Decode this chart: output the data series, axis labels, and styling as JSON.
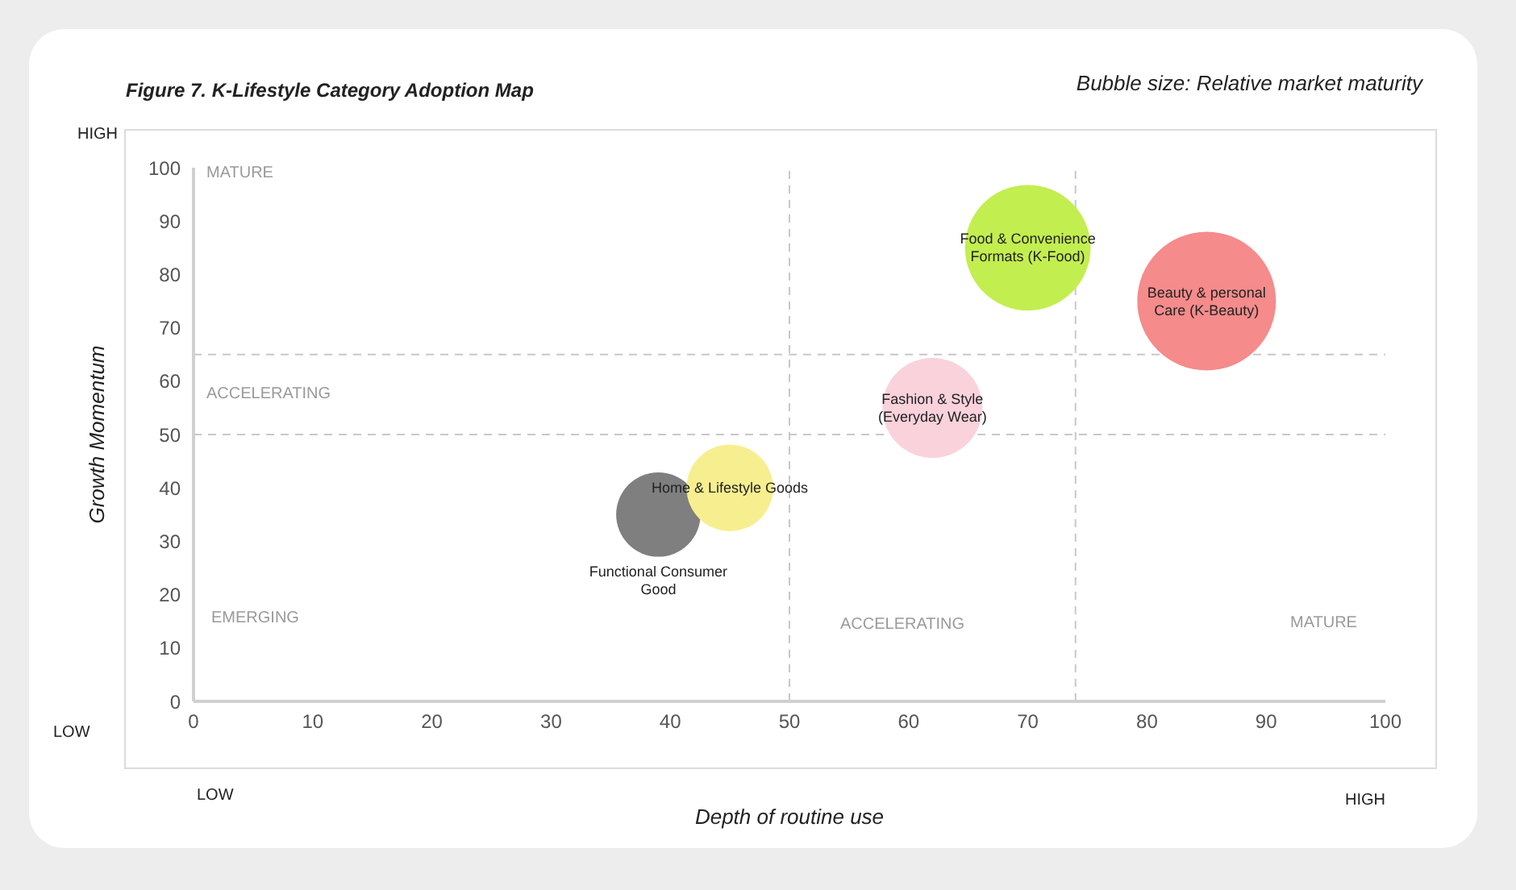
{
  "chart_data": {
    "type": "bubble",
    "title": "Figure 7. K-Lifestyle Category Adoption Map",
    "subtitle": "Bubble size: Relative market maturity",
    "xlabel": "Depth of routine use",
    "ylabel": "Growth Momentum",
    "xlim": [
      0,
      100
    ],
    "xticks": [
      0,
      10,
      20,
      30,
      40,
      50,
      60,
      70,
      80,
      90,
      100
    ],
    "ylim": [
      0,
      100
    ],
    "yticks": [
      0,
      10,
      20,
      30,
      40,
      50,
      60,
      70,
      80,
      90,
      100
    ],
    "grid": false,
    "series": [
      {
        "name": "Functional Consumer Good",
        "color": "#7f7f7f",
        "x": [
          39
        ],
        "values": [
          35
        ],
        "sizes": [
          0.37
        ]
      },
      {
        "name": "Home & Lifestyle Goods",
        "color": "#f7ef8f",
        "x": [
          45
        ],
        "values": [
          40
        ],
        "sizes": [
          0.39
        ]
      },
      {
        "name": "Fashion & Style (Everyday Wear)",
        "color": "#f9d2dc",
        "x": [
          62
        ],
        "values": [
          55
        ],
        "sizes": [
          0.52
        ]
      },
      {
        "name": "Food & Convenience Formats (K-Food)",
        "color": "#c3ee4f",
        "x": [
          70
        ],
        "values": [
          85
        ],
        "sizes": [
          0.82
        ]
      },
      {
        "name": "Beauty & personal Care (K-Beauty)",
        "color": "#f58b8b",
        "x": [
          85
        ],
        "values": [
          75
        ],
        "sizes": [
          1
        ]
      }
    ],
    "ref_lines": [
      {
        "axis": "y",
        "value": 65,
        "line_style": "dashed",
        "color": "#c8c8c8"
      },
      {
        "axis": "y",
        "value": 50,
        "line_style": "dashed",
        "color": "#c8c8c8"
      },
      {
        "axis": "x",
        "value": 50,
        "line_style": "dashed",
        "color": "#c8c8c8"
      },
      {
        "axis": "x",
        "value": 74,
        "line_style": "dashed",
        "color": "#c8c8c8"
      }
    ],
    "annotations": [
      "HIGH",
      "LOW",
      "LOW",
      "HIGH",
      "MATURE",
      "ACCELERATING",
      "EMERGING",
      "ACCELERATING",
      "MATURE"
    ]
  }
}
